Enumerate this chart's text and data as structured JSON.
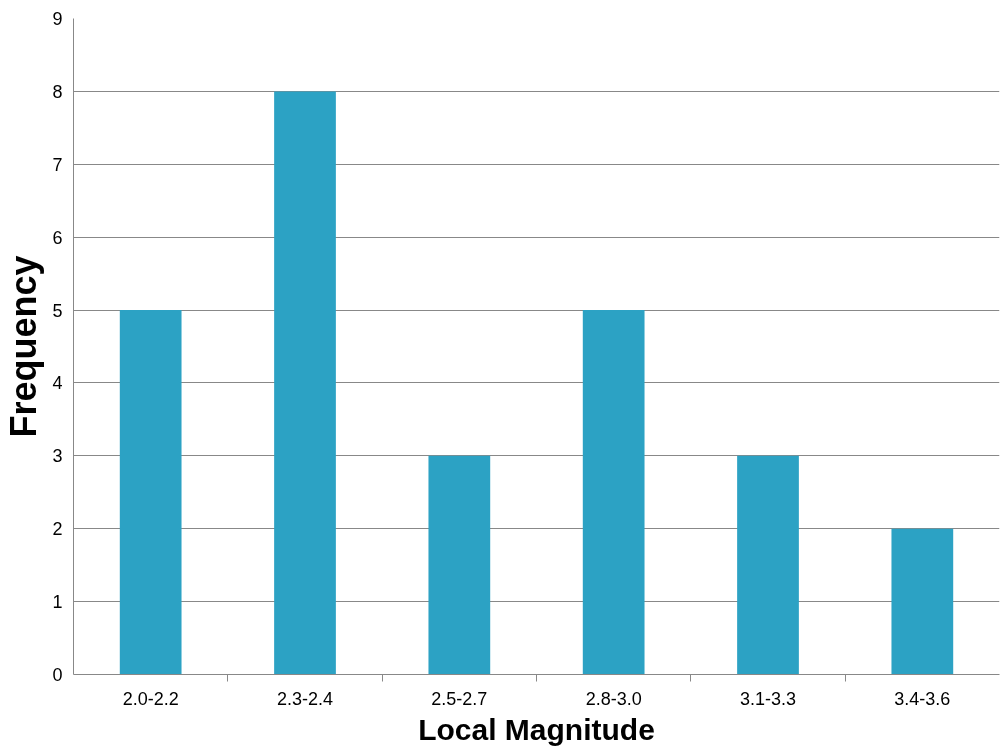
{
  "chart_data": {
    "type": "bar",
    "xlabel": "Local Magnitude",
    "ylabel": "Frequency",
    "categories": [
      "2.0-2.2",
      "2.3-2.4",
      "2.5-2.7",
      "2.8-3.0",
      "3.1-3.3",
      "3.4-3.6"
    ],
    "values": [
      5,
      8,
      3,
      5,
      3,
      2
    ],
    "color": "#2ca2c4",
    "ylim": [
      0,
      9
    ],
    "yticks": [
      0,
      1,
      2,
      3,
      4,
      5,
      6,
      7,
      8,
      9
    ],
    "grid": "y"
  }
}
